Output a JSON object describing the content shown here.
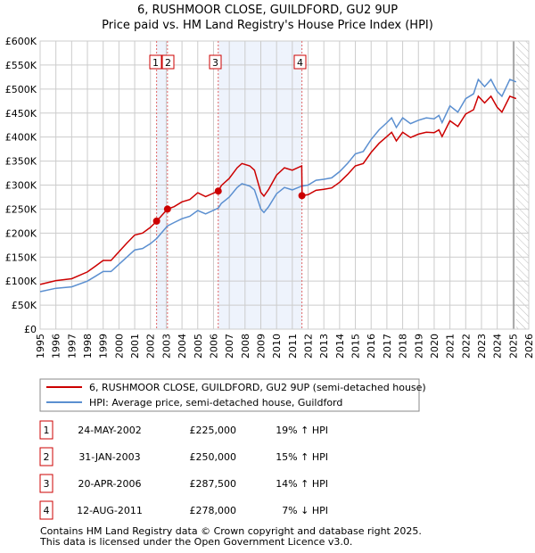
{
  "chart_data": {
    "type": "line",
    "title": "6, RUSHMOOR CLOSE, GUILDFORD, GU2 9UP",
    "subtitle": "Price paid vs. HM Land Registry's House Price Index (HPI)",
    "xlim": [
      1995,
      2026
    ],
    "ylim": [
      0,
      600000
    ],
    "x_ticks": [
      "1995",
      "1996",
      "1997",
      "1998",
      "1999",
      "2000",
      "2001",
      "2002",
      "2003",
      "2004",
      "2005",
      "2006",
      "2007",
      "2008",
      "2009",
      "2010",
      "2011",
      "2012",
      "2013",
      "2014",
      "2015",
      "2016",
      "2017",
      "2018",
      "2019",
      "2020",
      "2021",
      "2022",
      "2023",
      "2024",
      "2025",
      "2026"
    ],
    "y_ticks": [
      {
        "v": 0,
        "label": "£0"
      },
      {
        "v": 50000,
        "label": "£50K"
      },
      {
        "v": 100000,
        "label": "£100K"
      },
      {
        "v": 150000,
        "label": "£150K"
      },
      {
        "v": 200000,
        "label": "£200K"
      },
      {
        "v": 250000,
        "label": "£250K"
      },
      {
        "v": 300000,
        "label": "£300K"
      },
      {
        "v": 350000,
        "label": "£350K"
      },
      {
        "v": 400000,
        "label": "£400K"
      },
      {
        "v": 450000,
        "label": "£450K"
      },
      {
        "v": 500000,
        "label": "£500K"
      },
      {
        "v": 550000,
        "label": "£550K"
      },
      {
        "v": 600000,
        "label": "£600K"
      }
    ],
    "grid": true,
    "x": [
      1995,
      1996,
      1997,
      1998,
      1998.5,
      1999,
      1999.5,
      2000,
      2000.5,
      2001,
      2001.5,
      2002,
      2002.4,
      2003.08,
      2003.5,
      2004,
      2004.5,
      2005,
      2005.5,
      2006.3,
      2006.5,
      2007,
      2007.5,
      2007.8,
      2008.3,
      2008.6,
      2009,
      2009.2,
      2009.5,
      2010,
      2010.5,
      2011,
      2011.6,
      2011.62,
      2012,
      2012.5,
      2013,
      2013.5,
      2014,
      2014.5,
      2015,
      2015.5,
      2016,
      2016.5,
      2017,
      2017.3,
      2017.6,
      2018,
      2018.5,
      2019,
      2019.5,
      2020,
      2020.3,
      2020.5,
      2021,
      2021.5,
      2022,
      2022.5,
      2022.8,
      2023.2,
      2023.6,
      2024,
      2024.3,
      2024.8,
      2025.2
    ],
    "series": [
      {
        "name": "6, RUSHMOOR CLOSE, GUILDFORD, GU2 9UP (semi-detached house)",
        "color": "#cc0000",
        "values": [
          93000,
          101000,
          105000,
          119000,
          131000,
          143000,
          143000,
          161000,
          179000,
          196000,
          200000,
          212000,
          225000,
          250000,
          255000,
          265000,
          270000,
          284000,
          276000,
          287500,
          299000,
          314000,
          336000,
          345000,
          340000,
          331000,
          285000,
          277000,
          291000,
          321000,
          336000,
          331000,
          340000,
          278000,
          280000,
          289000,
          291000,
          294000,
          306000,
          322000,
          340000,
          345000,
          368000,
          387000,
          401000,
          410000,
          392000,
          410000,
          399000,
          406000,
          410000,
          409000,
          415000,
          401000,
          434000,
          422000,
          448000,
          457000,
          485000,
          471000,
          485000,
          462000,
          452000,
          485000,
          480000
        ]
      },
      {
        "name": "HPI: Average price, semi-detached house, Guildford",
        "color": "#5b8fd0",
        "values": [
          78000,
          85000,
          88000,
          100000,
          110000,
          120000,
          120000,
          135000,
          150000,
          165000,
          168000,
          178000,
          189000,
          215000,
          222000,
          230000,
          235000,
          247000,
          240000,
          252000,
          262000,
          275000,
          295000,
          303000,
          298000,
          290000,
          250000,
          243000,
          255000,
          282000,
          295000,
          290000,
          298000,
          298000,
          300000,
          310000,
          312000,
          315000,
          328000,
          345000,
          365000,
          370000,
          395000,
          415000,
          430000,
          440000,
          420000,
          440000,
          428000,
          435000,
          440000,
          438000,
          445000,
          430000,
          465000,
          452000,
          480000,
          490000,
          520000,
          505000,
          520000,
          495000,
          485000,
          520000,
          515000
        ]
      }
    ],
    "sales": [
      {
        "n": "1",
        "x": 2002.39,
        "price": 225000,
        "date": "24-MAY-2002",
        "price_label": "£225,000",
        "hpi": "19% ↑ HPI"
      },
      {
        "n": "2",
        "x": 2003.08,
        "price": 250000,
        "date": "31-JAN-2003",
        "price_label": "£250,000",
        "hpi": "15% ↑ HPI"
      },
      {
        "n": "3",
        "x": 2006.3,
        "price": 287500,
        "date": "20-APR-2006",
        "price_label": "£287,500",
        "hpi": "14% ↑ HPI"
      },
      {
        "n": "4",
        "x": 2011.61,
        "price": 278000,
        "date": "12-AUG-2011",
        "price_label": "£278,000",
        "hpi": "7% ↓ HPI"
      }
    ],
    "shaded_ranges": [
      [
        2002.39,
        2003.08
      ],
      [
        2006.3,
        2011.61
      ]
    ],
    "forecast_from": 2025.2,
    "legend_position": "below"
  },
  "footer": [
    "Contains HM Land Registry data © Crown copyright and database right 2025.",
    "This data is licensed under the Open Government Licence v3.0."
  ]
}
